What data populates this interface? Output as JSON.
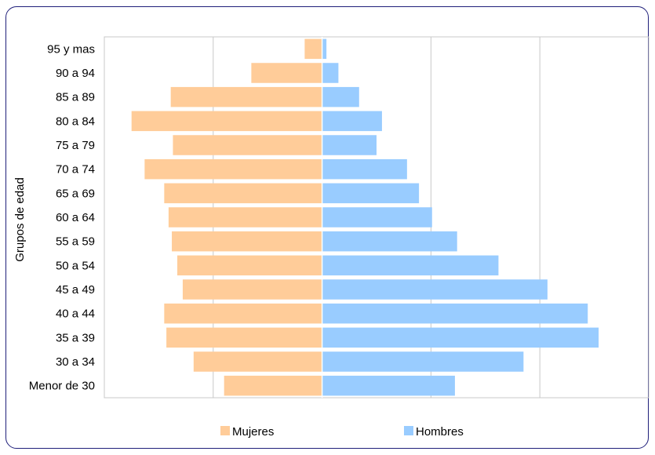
{
  "chart_data": {
    "type": "bar",
    "orientation": "horizontal-population-pyramid",
    "title": "",
    "xlabel": "",
    "ylabel": "Grupos de edad",
    "categories": [
      "95 y mas",
      "90 a 94",
      "85 a 89",
      "80 a 84",
      "75 a 79",
      "70 a 74",
      "65 a 69",
      "60 a 64",
      "55 a 59",
      "50 a 54",
      "45 a 49",
      "40 a 44",
      "35 a  39",
      "30 a  34",
      "Menor de 30"
    ],
    "series": [
      {
        "name": "Mujeres",
        "color": "#FFCC99",
        "values": [
          16,
          65,
          139,
          175,
          137,
          163,
          145,
          141,
          138,
          133,
          128,
          145,
          143,
          118,
          90
        ]
      },
      {
        "name": "Hombres",
        "color": "#99CCFF",
        "values": [
          4,
          15,
          34,
          55,
          50,
          78,
          89,
          101,
          124,
          162,
          207,
          244,
          254,
          185,
          122
        ]
      }
    ],
    "xlim": [
      -200,
      300
    ],
    "grid": true,
    "legend": "bottom"
  }
}
